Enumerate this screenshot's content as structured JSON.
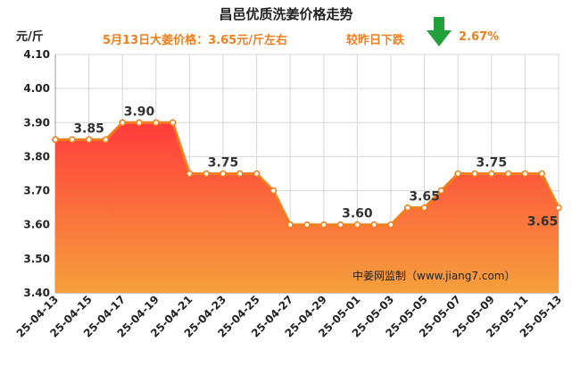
{
  "header": {
    "title": "昌邑优质洗姜价格走势",
    "subtitle": "5月13日大姜价格：3.65元/斤左右",
    "change_label": "较昨日下跌",
    "change_pct": "2.67%",
    "arrow_icon": "down-arrow-icon",
    "arrow_color": "#22a03a",
    "accent_color": "#f07f1c"
  },
  "chart_data": {
    "type": "area",
    "title": "昌邑优质洗姜价格走势",
    "ylabel": "元/斤",
    "xlabel": "",
    "ylim": [
      3.4,
      4.1
    ],
    "yticks": [
      "3.40",
      "3.50",
      "3.60",
      "3.70",
      "3.80",
      "3.90",
      "4.00",
      "4.10"
    ],
    "x": [
      "25-04-13",
      "25-04-14",
      "25-04-15",
      "25-04-16",
      "25-04-17",
      "25-04-18",
      "25-04-19",
      "25-04-20",
      "25-04-21",
      "25-04-22",
      "25-04-23",
      "25-04-24",
      "25-04-25",
      "25-04-26",
      "25-04-27",
      "25-04-28",
      "25-04-29",
      "25-04-30",
      "25-05-01",
      "25-05-02",
      "25-05-03",
      "25-05-04",
      "25-05-05",
      "25-05-06",
      "25-05-07",
      "25-05-08",
      "25-05-09",
      "25-05-10",
      "25-05-11",
      "25-05-12",
      "25-05-13"
    ],
    "xtick_labels": [
      "25-04-13",
      "25-04-15",
      "25-04-17",
      "25-04-19",
      "25-04-21",
      "25-04-23",
      "25-04-25",
      "25-04-27",
      "25-04-29",
      "25-05-01",
      "25-05-03",
      "25-05-05",
      "25-05-07",
      "25-05-09",
      "25-05-11",
      "25-05-13"
    ],
    "values": [
      3.85,
      3.85,
      3.85,
      3.85,
      3.9,
      3.9,
      3.9,
      3.9,
      3.75,
      3.75,
      3.75,
      3.75,
      3.75,
      3.7,
      3.6,
      3.6,
      3.6,
      3.6,
      3.6,
      3.6,
      3.6,
      3.65,
      3.65,
      3.7,
      3.75,
      3.75,
      3.75,
      3.75,
      3.75,
      3.75,
      3.65
    ],
    "data_labels": [
      {
        "index": 2,
        "text": "3.85"
      },
      {
        "index": 5,
        "text": "3.90"
      },
      {
        "index": 10,
        "text": "3.75"
      },
      {
        "index": 18,
        "text": "3.60"
      },
      {
        "index": 22,
        "text": "3.65"
      },
      {
        "index": 26,
        "text": "3.75"
      },
      {
        "index": 30,
        "text": "3.65"
      }
    ],
    "grid": true,
    "line_color": "#f07f1c",
    "fill_top_color": "#ff3c3c",
    "fill_bottom_color": "#f5a03c"
  },
  "watermark": "中姜网监制（www.jiang7.com）"
}
